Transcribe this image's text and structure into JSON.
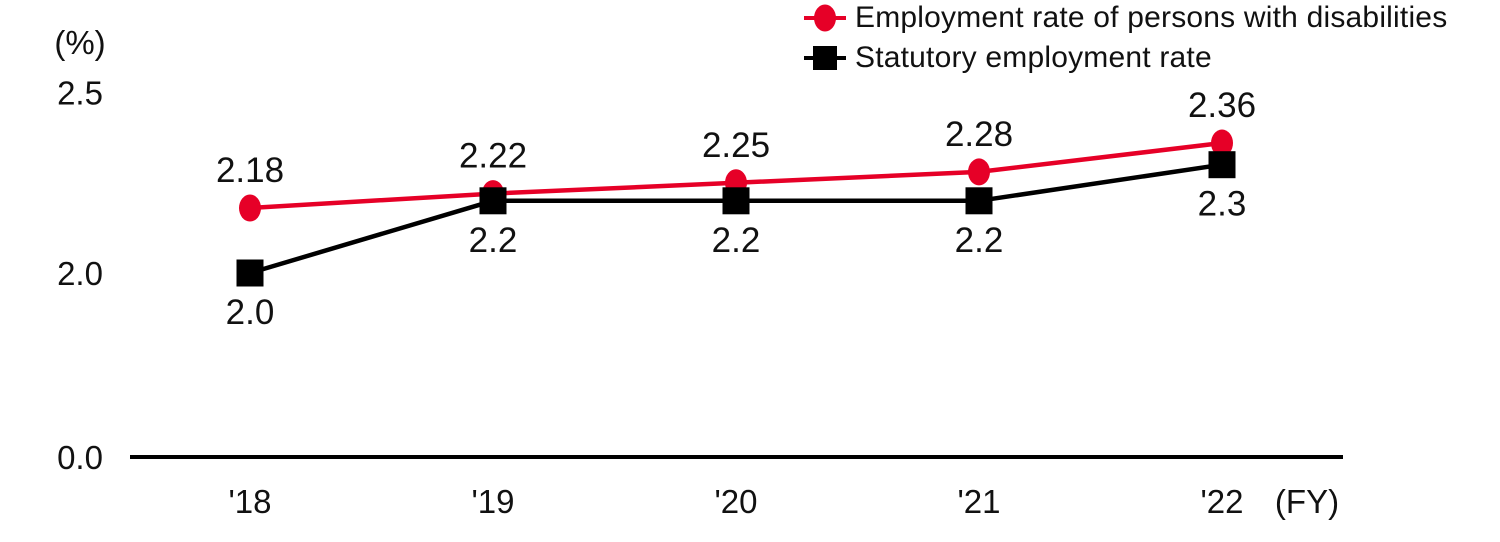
{
  "y_axis": {
    "unit_label": "(%)",
    "ticks": [
      {
        "text": "2.5",
        "value": 2.5
      },
      {
        "text": "2.0",
        "value": 2.0
      },
      {
        "text": "0.0",
        "value": 0.0
      }
    ]
  },
  "x_axis": {
    "unit_label": "(FY)",
    "ticks": [
      "'18",
      "'19",
      "'20",
      "'21",
      "'22"
    ]
  },
  "legend": {
    "items": [
      {
        "label": "Employment rate of persons with disabilities"
      },
      {
        "label": "Statutory employment rate"
      }
    ]
  },
  "chart_data": {
    "type": "line",
    "categories": [
      "'18",
      "'19",
      "'20",
      "'21",
      "'22"
    ],
    "series": [
      {
        "name": "Employment rate of persons with disabilities",
        "values": [
          2.18,
          2.22,
          2.25,
          2.28,
          2.36
        ],
        "labels": [
          "2.18",
          "2.22",
          "2.25",
          "2.28",
          "2.36"
        ],
        "color": "#e60027",
        "marker": "circle",
        "label_position": "above"
      },
      {
        "name": "Statutory employment rate",
        "values": [
          2.0,
          2.2,
          2.2,
          2.2,
          2.3
        ],
        "labels": [
          "2.0",
          "2.2",
          "2.2",
          "2.2",
          "2.3"
        ],
        "color": "#000000",
        "marker": "square",
        "label_position": "below"
      }
    ],
    "title": "",
    "xlabel": "(FY)",
    "ylabel": "(%)",
    "ylim_shown": [
      0.0,
      2.5
    ],
    "y_ticks_shown": [
      2.5,
      2.0,
      0.0
    ],
    "axis_break_between_0_and_2": true,
    "grid": false,
    "legend_position": "top-right"
  },
  "colors": {
    "series_red": "#e60027",
    "series_black": "#000000",
    "text": "#111111",
    "background": "#ffffff"
  }
}
